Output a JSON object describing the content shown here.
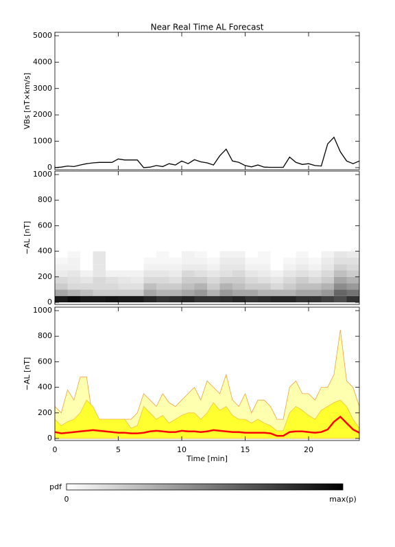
{
  "chart_data": [
    {
      "type": "line",
      "title": "Near Real Time AL Forecast",
      "ylabel": "VBs [nT×km/s]",
      "color": "#000000",
      "x": [
        0,
        0.5,
        1,
        1.5,
        2,
        2.5,
        3,
        3.5,
        4,
        4.5,
        5,
        5.5,
        6,
        6.5,
        7,
        7.5,
        8,
        8.5,
        9,
        9.5,
        10,
        10.5,
        11,
        11.5,
        12,
        12.5,
        13,
        13.5,
        14,
        14.5,
        15,
        15.5,
        16,
        16.5,
        17,
        17.5,
        18,
        18.5,
        19,
        19.5,
        20,
        20.5,
        21,
        21.5,
        22,
        22.5,
        23,
        23.5,
        24
      ],
      "values": [
        0,
        20,
        60,
        40,
        100,
        150,
        180,
        200,
        200,
        200,
        330,
        290,
        290,
        290,
        0,
        20,
        80,
        40,
        150,
        100,
        250,
        150,
        300,
        220,
        180,
        100,
        450,
        700,
        250,
        200,
        80,
        30,
        100,
        20,
        10,
        10,
        10,
        400,
        200,
        120,
        150,
        80,
        60,
        900,
        1150,
        600,
        250,
        150,
        250
      ],
      "xlim": [
        0,
        24
      ],
      "xticks": [
        0,
        5,
        10,
        15,
        20
      ],
      "ylim": [
        -80,
        5130
      ],
      "yticks": [
        0,
        1000,
        2000,
        3000,
        4000,
        5000
      ]
    },
    {
      "type": "heatmap",
      "ylabel": "−AL [nT]",
      "xbins": [
        0,
        1,
        2,
        3,
        4,
        5,
        6,
        7,
        8,
        9,
        10,
        11,
        12,
        13,
        14,
        15,
        16,
        17,
        18,
        19,
        20,
        21,
        22,
        23,
        24
      ],
      "ybins": [
        0,
        50,
        100,
        150,
        200,
        250,
        300,
        350,
        400
      ],
      "z": [
        [
          0.9,
          0.95,
          0.9,
          0.9,
          0.92,
          0.9,
          0.9,
          0.85,
          0.8,
          0.82,
          0.85,
          0.8,
          0.8,
          0.82,
          0.85,
          0.8,
          0.82,
          0.85,
          0.85,
          0.8,
          0.8,
          0.75,
          0.7,
          0.8
        ],
        [
          0.35,
          0.3,
          0.25,
          0.2,
          0.2,
          0.2,
          0.2,
          0.35,
          0.3,
          0.3,
          0.35,
          0.4,
          0.3,
          0.4,
          0.35,
          0.35,
          0.3,
          0.3,
          0.3,
          0.35,
          0.35,
          0.4,
          0.6,
          0.55
        ],
        [
          0.2,
          0.15,
          0.15,
          0.15,
          0.15,
          0.12,
          0.12,
          0.25,
          0.2,
          0.2,
          0.25,
          0.3,
          0.2,
          0.3,
          0.25,
          0.2,
          0.2,
          0.15,
          0.2,
          0.25,
          0.25,
          0.3,
          0.45,
          0.4
        ],
        [
          0.15,
          0.12,
          0.1,
          0.15,
          0.12,
          0.1,
          0.08,
          0.15,
          0.15,
          0.12,
          0.2,
          0.2,
          0.15,
          0.2,
          0.2,
          0.15,
          0.12,
          0.1,
          0.15,
          0.2,
          0.15,
          0.2,
          0.35,
          0.3
        ],
        [
          0.08,
          0.1,
          0.05,
          0.1,
          0.05,
          0.05,
          0.05,
          0.1,
          0.1,
          0.08,
          0.15,
          0.12,
          0.1,
          0.12,
          0.15,
          0.1,
          0.08,
          0.05,
          0.1,
          0.12,
          0.1,
          0.15,
          0.25,
          0.2
        ],
        [
          0.05,
          0.05,
          0,
          0.1,
          0,
          0,
          0,
          0.05,
          0.05,
          0.05,
          0.08,
          0.08,
          0.05,
          0.1,
          0.1,
          0.05,
          0.05,
          0,
          0.05,
          0.08,
          0.05,
          0.1,
          0.18,
          0.15
        ],
        [
          0.03,
          0.05,
          0,
          0.1,
          0,
          0,
          0,
          0.03,
          0.03,
          0.03,
          0.05,
          0.05,
          0.03,
          0.08,
          0.08,
          0.03,
          0.03,
          0,
          0.03,
          0.05,
          0.03,
          0.08,
          0.12,
          0.12
        ],
        [
          0,
          0.03,
          0,
          0.1,
          0,
          0,
          0,
          0,
          0.03,
          0,
          0.05,
          0.03,
          0,
          0.05,
          0.05,
          0,
          0.03,
          0,
          0,
          0.03,
          0,
          0.05,
          0.1,
          0.08
        ]
      ],
      "xlim": [
        0,
        24
      ],
      "xticks": [
        0,
        5,
        10,
        15,
        20
      ],
      "ylim": [
        -16,
        1027
      ],
      "yticks": [
        0,
        200,
        400,
        600,
        800,
        1000
      ]
    },
    {
      "type": "area",
      "ylabel": "−AL [nT]",
      "xlabel": "Time [min]",
      "x": [
        0,
        0.5,
        1,
        1.5,
        2,
        2.5,
        3,
        3.5,
        4,
        4.5,
        5,
        5.5,
        6,
        6.5,
        7,
        7.5,
        8,
        8.5,
        9,
        9.5,
        10,
        10.5,
        11,
        11.5,
        12,
        12.5,
        13,
        13.5,
        14,
        14.5,
        15,
        15.5,
        16,
        16.5,
        17,
        17.5,
        18,
        18.5,
        19,
        19.5,
        20,
        20.5,
        21,
        21.5,
        22,
        22.5,
        23,
        23.5,
        24
      ],
      "series": [
        {
          "color": "#f0a040",
          "fill": "#ffffb0",
          "values": [
            250,
            200,
            380,
            300,
            480,
            480,
            150,
            150,
            150,
            150,
            150,
            150,
            150,
            200,
            350,
            300,
            250,
            350,
            280,
            250,
            300,
            350,
            400,
            300,
            450,
            400,
            350,
            500,
            300,
            250,
            350,
            200,
            300,
            300,
            250,
            150,
            150,
            400,
            450,
            350,
            350,
            300,
            400,
            400,
            500,
            850,
            450,
            400,
            250
          ]
        },
        {
          "color": "#f0c040",
          "fill": "#ffff30",
          "values": [
            150,
            100,
            130,
            150,
            200,
            300,
            250,
            150,
            150,
            150,
            150,
            150,
            80,
            100,
            250,
            200,
            150,
            180,
            120,
            150,
            180,
            200,
            200,
            150,
            200,
            280,
            220,
            250,
            180,
            150,
            150,
            120,
            150,
            120,
            100,
            60,
            60,
            200,
            250,
            220,
            180,
            150,
            220,
            250,
            280,
            300,
            250,
            150,
            80
          ]
        },
        {
          "color": "#ff0000",
          "values": [
            50,
            40,
            45,
            50,
            55,
            60,
            65,
            60,
            55,
            50,
            45,
            45,
            40,
            40,
            45,
            55,
            60,
            55,
            50,
            50,
            60,
            55,
            55,
            50,
            55,
            65,
            60,
            55,
            50,
            50,
            45,
            45,
            45,
            45,
            40,
            20,
            20,
            50,
            55,
            55,
            50,
            45,
            50,
            70,
            130,
            170,
            120,
            70,
            45
          ]
        }
      ],
      "xlim": [
        0,
        24
      ],
      "xticks": [
        0,
        5,
        10,
        15,
        20
      ],
      "ylim": [
        -16,
        1027
      ],
      "yticks": [
        0,
        200,
        400,
        600,
        800,
        1000
      ]
    }
  ],
  "colorbar": {
    "label": "pdf",
    "min_label": "0",
    "max_label": "max(p)"
  }
}
